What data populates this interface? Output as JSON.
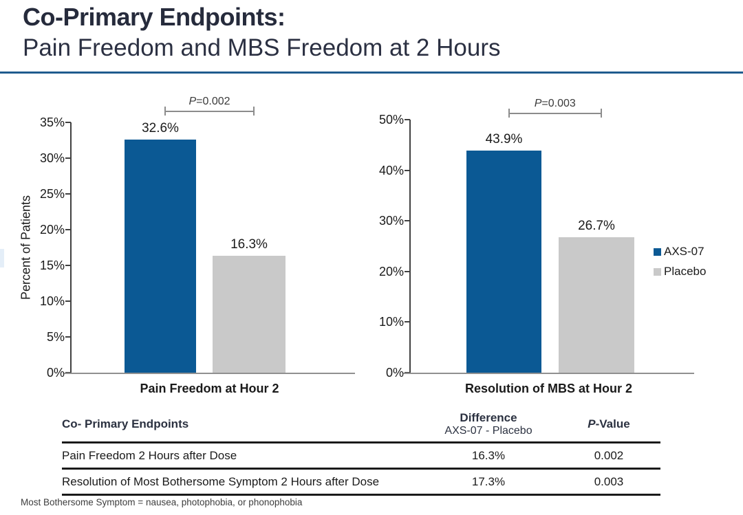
{
  "header": {
    "title_line1": "Co-Primary Endpoints:",
    "title_line2": "Pain Freedom and MBS Freedom at 2 Hours"
  },
  "chart_data": [
    {
      "type": "bar",
      "title": "Pain Freedom at Hour 2",
      "ylabel": "Percent of Patients",
      "ylim": [
        0,
        35
      ],
      "ytick_step": 5,
      "ytick_suffix": "%",
      "grid": false,
      "categories": [
        "AXS-07",
        "Placebo"
      ],
      "values": [
        32.6,
        16.3
      ],
      "value_labels": [
        "32.6%",
        "16.3%"
      ],
      "colors": [
        "#0b5994",
        "#c9c9c9"
      ],
      "p_value": {
        "italic": "P",
        "rest": "=0.002"
      }
    },
    {
      "type": "bar",
      "title": "Resolution of MBS at Hour 2",
      "ylabel": "",
      "ylim": [
        0,
        50
      ],
      "ytick_step": 10,
      "ytick_suffix": "%",
      "grid": false,
      "categories": [
        "AXS-07",
        "Placebo"
      ],
      "values": [
        43.9,
        26.7
      ],
      "value_labels": [
        "43.9%",
        "26.7%"
      ],
      "colors": [
        "#0b5994",
        "#c9c9c9"
      ],
      "p_value": {
        "italic": "P",
        "rest": "=0.003"
      }
    }
  ],
  "legend": {
    "position": "right",
    "items": [
      {
        "label": "AXS-07",
        "color": "#0b5994"
      },
      {
        "label": "Placebo",
        "color": "#c9c9c9"
      }
    ]
  },
  "table": {
    "col1_header": "Co- Primary Endpoints",
    "col2_header_line1": "Difference",
    "col2_header_line2": "AXS-07 - Placebo",
    "col3_header_italic": "P",
    "col3_header_rest": "-Value",
    "rows": [
      {
        "endpoint": "Pain Freedom 2 Hours after Dose",
        "difference": "16.3%",
        "p_value": "0.002"
      },
      {
        "endpoint": "Resolution of Most Bothersome Symptom 2 Hours after Dose",
        "difference": "17.3%",
        "p_value": "0.003"
      }
    ]
  },
  "footnote": "Most Bothersome Symptom = nausea, photophobia, or phonophobia",
  "colors": {
    "accent_blue": "#0b5994",
    "bar_gray": "#c9c9c9",
    "title_text": "#262b3c",
    "rule_blue": "#1f5b8e"
  }
}
